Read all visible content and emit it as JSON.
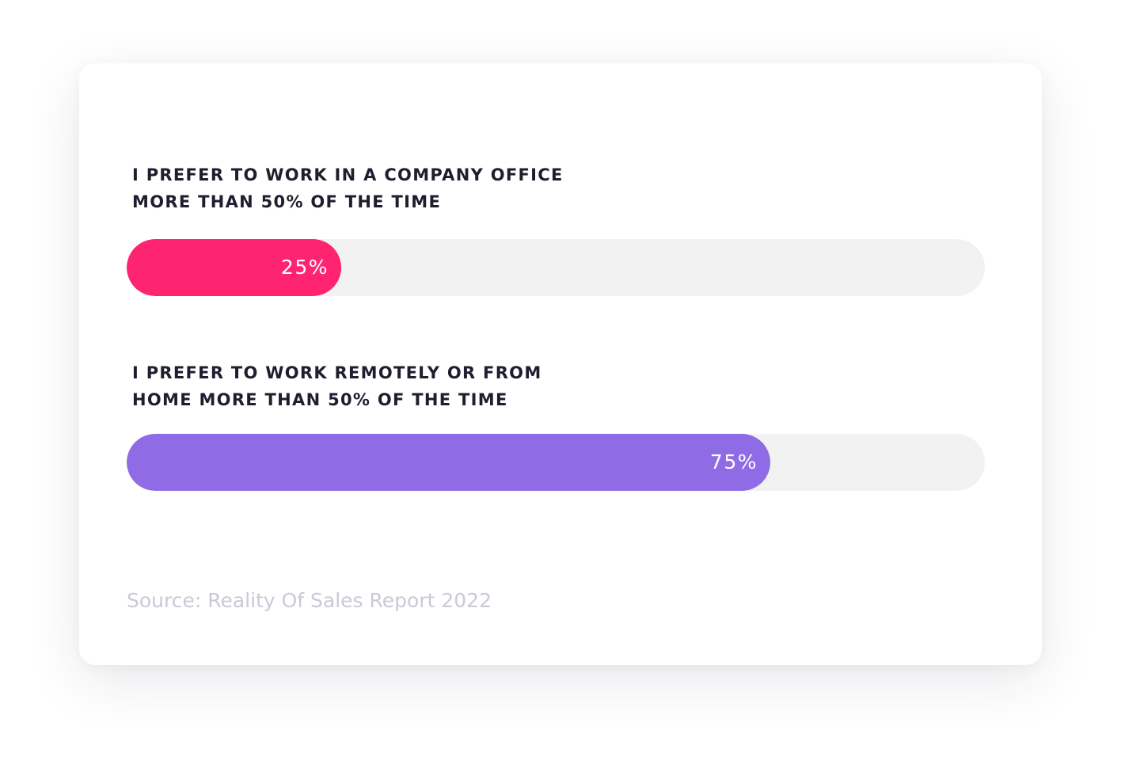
{
  "chart_data": {
    "type": "bar",
    "orientation": "horizontal",
    "value_format": "percent",
    "xlim": [
      0,
      100
    ],
    "grid": false,
    "bars": [
      {
        "label_lines": [
          "I PREFER TO WORK IN A COMPANY OFFICE",
          "MORE THAN 50% OF THE TIME"
        ],
        "value": 25,
        "value_label": "25%",
        "color": "#ff2470"
      },
      {
        "label_lines": [
          "I PREFER TO WORK REMOTELY OR FROM",
          "HOME MORE THAN 50% OF THE TIME"
        ],
        "value": 75,
        "value_label": "75%",
        "color": "#8f6ce6"
      }
    ],
    "track_color": "#f2f2f2",
    "source": "Source: Reality Of Sales Report 2022"
  }
}
